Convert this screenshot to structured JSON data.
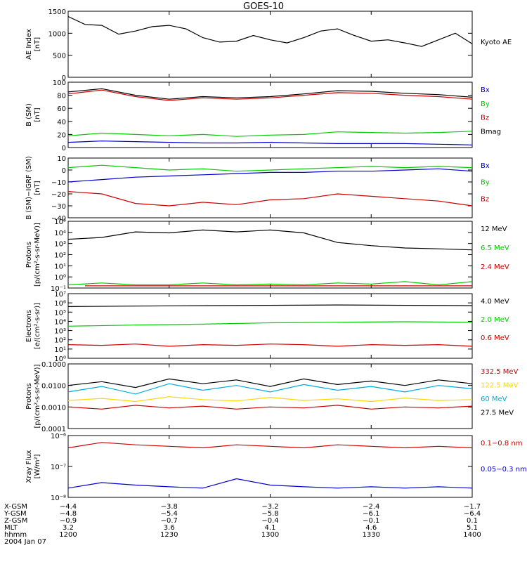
{
  "title": "GOES-10",
  "chart_data": [
    {
      "type": "line",
      "panel": "ae-index",
      "ylabel": [
        "AE Index",
        "[nT]"
      ],
      "ylim": [
        0,
        1500
      ],
      "y_ticks": [
        "0",
        "500",
        "1000",
        "1500"
      ],
      "series": [
        {
          "name": "Kyoto AE",
          "color": "#000000",
          "x": [
            0,
            5,
            10,
            15,
            20,
            25,
            30,
            35,
            40,
            45,
            50,
            55,
            60,
            65,
            70,
            75,
            80,
            85,
            90,
            95,
            100,
            105,
            110,
            115,
            120
          ],
          "y": [
            1380,
            1200,
            1180,
            980,
            1050,
            1150,
            1180,
            1100,
            900,
            800,
            820,
            950,
            850,
            780,
            900,
            1050,
            1100,
            950,
            820,
            850,
            780,
            700,
            850,
            1000,
            760
          ]
        }
      ]
    },
    {
      "type": "line",
      "panel": "b-field-sm",
      "ylabel": [
        "B (SM)",
        "[nT]"
      ],
      "ylim": [
        0,
        100
      ],
      "y_ticks": [
        "0",
        "20",
        "40",
        "60",
        "80",
        "100"
      ],
      "series": [
        {
          "name": "Bx",
          "color": "#0000cc",
          "x": [
            0,
            10,
            20,
            30,
            40,
            50,
            60,
            70,
            80,
            90,
            100,
            110,
            120
          ],
          "y": [
            8,
            10,
            9,
            8,
            7,
            7,
            8,
            7,
            6,
            6,
            6,
            5,
            4
          ]
        },
        {
          "name": "By",
          "color": "#00cc00",
          "x": [
            0,
            10,
            20,
            30,
            40,
            50,
            60,
            70,
            80,
            90,
            100,
            110,
            120
          ],
          "y": [
            18,
            22,
            20,
            18,
            20,
            17,
            19,
            20,
            24,
            23,
            22,
            23,
            25
          ]
        },
        {
          "name": "Bz",
          "color": "#cc0000",
          "x": [
            0,
            10,
            20,
            30,
            40,
            50,
            60,
            70,
            80,
            90,
            100,
            110,
            120
          ],
          "y": [
            82,
            88,
            78,
            72,
            76,
            74,
            76,
            80,
            84,
            83,
            80,
            78,
            74
          ]
        },
        {
          "name": "Bmag",
          "color": "#000000",
          "x": [
            0,
            10,
            20,
            30,
            40,
            50,
            60,
            70,
            80,
            90,
            100,
            110,
            120
          ],
          "y": [
            85,
            90,
            80,
            74,
            78,
            76,
            78,
            82,
            87,
            86,
            83,
            81,
            77
          ]
        }
      ]
    },
    {
      "type": "line",
      "panel": "b-minus-igrf",
      "ylabel": [
        "B (SM)−IGRF (SM)",
        "[nT]"
      ],
      "ylim": [
        -40,
        10
      ],
      "y_ticks": [
        "−40",
        "−30",
        "−20",
        "−10",
        "0",
        "10"
      ],
      "series": [
        {
          "name": "Bx",
          "color": "#0000cc",
          "x": [
            0,
            10,
            20,
            30,
            40,
            50,
            60,
            70,
            80,
            90,
            100,
            110,
            120
          ],
          "y": [
            -10,
            -8,
            -6,
            -5,
            -4,
            -3,
            -2,
            -2,
            -1,
            -1,
            0,
            1,
            -1
          ]
        },
        {
          "name": "By",
          "color": "#00cc00",
          "x": [
            0,
            10,
            20,
            30,
            40,
            50,
            60,
            70,
            80,
            90,
            100,
            110,
            120
          ],
          "y": [
            2,
            4,
            2,
            0,
            1,
            -1,
            0,
            1,
            2,
            3,
            2,
            3,
            2
          ]
        },
        {
          "name": "Bz",
          "color": "#cc0000",
          "x": [
            0,
            10,
            20,
            30,
            40,
            50,
            60,
            70,
            80,
            90,
            100,
            110,
            120
          ],
          "y": [
            -18,
            -20,
            -28,
            -30,
            -27,
            -29,
            -25,
            -24,
            -20,
            -22,
            -24,
            -26,
            -30
          ]
        }
      ]
    },
    {
      "type": "line",
      "panel": "protons-low",
      "ylabel": [
        "Protons",
        "[p/(cm²-s-sr-MeV)]"
      ],
      "y_scale": "log",
      "ylim": [
        0.05,
        100000
      ],
      "y_ticks": [
        "10⁻¹",
        "10⁰",
        "10¹",
        "10²",
        "10³",
        "10⁴",
        "10⁵"
      ],
      "series": [
        {
          "name": "12 MeV",
          "color": "#000000",
          "x": [
            0,
            10,
            20,
            30,
            40,
            50,
            60,
            70,
            80,
            90,
            100,
            110,
            120
          ],
          "y": [
            2000,
            3000,
            10000,
            8000,
            15000,
            10000,
            15000,
            8000,
            1000,
            500,
            300,
            250,
            200
          ]
        },
        {
          "name": "6.5 MeV",
          "color": "#00cc00",
          "x": [
            0,
            10,
            20,
            30,
            40,
            50,
            60,
            70,
            80,
            90,
            100,
            110,
            120
          ],
          "y": [
            0.1,
            0.15,
            0.1,
            0.1,
            0.15,
            0.1,
            0.12,
            0.1,
            0.15,
            0.12,
            0.2,
            0.1,
            0.2
          ]
        },
        {
          "name": "2.4 MeV",
          "color": "#cc0000",
          "x": [
            5,
            40,
            80,
            120
          ],
          "y": [
            0.08,
            0.08,
            0.08,
            0.08
          ]
        }
      ]
    },
    {
      "type": "line",
      "panel": "electrons",
      "ylabel": [
        "Electrons",
        "[e/(cm²-s-sr)]"
      ],
      "y_scale": "log",
      "ylim": [
        1,
        10000000
      ],
      "y_ticks": [
        "10⁰",
        "10¹",
        "10²",
        "10³",
        "10⁴",
        "10⁵",
        "10⁶",
        "10⁷"
      ],
      "series": [
        {
          "name": "4.0 MeV",
          "color": "#000000",
          "x": [
            0,
            20,
            40,
            60,
            80,
            100,
            120
          ],
          "y": [
            400000,
            450000,
            500000,
            550000,
            600000,
            550000,
            500000
          ]
        },
        {
          "name": "2.0 MeV",
          "color": "#00cc00",
          "x": [
            0,
            20,
            40,
            60,
            80,
            100,
            120
          ],
          "y": [
            3000,
            4000,
            5000,
            7000,
            8000,
            9000,
            8000
          ]
        },
        {
          "name": "0.6 MeV",
          "color": "#cc0000",
          "x": [
            0,
            10,
            20,
            30,
            40,
            50,
            60,
            70,
            80,
            90,
            100,
            110,
            120
          ],
          "y": [
            30,
            25,
            35,
            20,
            30,
            25,
            35,
            30,
            20,
            30,
            25,
            30,
            20
          ]
        }
      ]
    },
    {
      "type": "line",
      "panel": "protons-high",
      "ylabel": [
        "Protons",
        "[p/(cm²-s-sr-MeV)]"
      ],
      "y_scale": "log",
      "ylim": [
        0.0001,
        0.1
      ],
      "y_ticks": [
        "0.0001",
        "0.0010",
        "0.0100",
        "0.1000"
      ],
      "series": [
        {
          "name": "332.5 MeV",
          "color": "#cc0000",
          "x": [
            0,
            10,
            20,
            30,
            40,
            50,
            60,
            70,
            80,
            90,
            100,
            110,
            120
          ],
          "y": [
            0.001,
            0.0008,
            0.0012,
            0.0009,
            0.0011,
            0.0008,
            0.001,
            0.0009,
            0.0012,
            0.0008,
            0.001,
            0.0009,
            0.0011
          ]
        },
        {
          "name": "122.5 MeV",
          "color": "#ffd700",
          "x": [
            0,
            10,
            20,
            30,
            40,
            50,
            60,
            70,
            80,
            90,
            100,
            110,
            120
          ],
          "y": [
            0.002,
            0.0025,
            0.0018,
            0.003,
            0.0022,
            0.0019,
            0.0028,
            0.002,
            0.0024,
            0.0018,
            0.0026,
            0.002,
            0.0022
          ]
        },
        {
          "name": "60 MeV",
          "color": "#00aadd",
          "x": [
            0,
            10,
            20,
            30,
            40,
            50,
            60,
            70,
            80,
            90,
            100,
            110,
            120
          ],
          "y": [
            0.005,
            0.009,
            0.004,
            0.012,
            0.006,
            0.01,
            0.005,
            0.011,
            0.006,
            0.009,
            0.005,
            0.01,
            0.007
          ]
        },
        {
          "name": "27.5 MeV",
          "color": "#000000",
          "x": [
            0,
            10,
            20,
            30,
            40,
            50,
            60,
            70,
            80,
            90,
            100,
            110,
            120
          ],
          "y": [
            0.01,
            0.015,
            0.008,
            0.02,
            0.012,
            0.018,
            0.009,
            0.02,
            0.011,
            0.016,
            0.01,
            0.018,
            0.012
          ]
        }
      ]
    },
    {
      "type": "line",
      "panel": "xray-flux",
      "ylabel": [
        "Xray Flux",
        "[W/m²]"
      ],
      "y_scale": "log",
      "ylim": [
        1e-08,
        1e-06
      ],
      "y_ticks": [
        "10⁻⁸",
        "10⁻⁷",
        "10⁻⁶"
      ],
      "series": [
        {
          "name": "0.1−0.8 nm",
          "color": "#cc0000",
          "x": [
            0,
            10,
            20,
            30,
            40,
            50,
            60,
            70,
            80,
            90,
            100,
            110,
            120
          ],
          "y": [
            4e-07,
            6e-07,
            5e-07,
            4.5e-07,
            4e-07,
            5e-07,
            4.5e-07,
            4e-07,
            5e-07,
            4.5e-07,
            4e-07,
            4.5e-07,
            4e-07
          ]
        },
        {
          "name": "0.05−0.3 nm",
          "color": "#0000cc",
          "x": [
            0,
            10,
            20,
            30,
            40,
            50,
            60,
            70,
            80,
            90,
            100,
            110,
            120
          ],
          "y": [
            2e-08,
            3e-08,
            2.5e-08,
            2.2e-08,
            2e-08,
            4e-08,
            2.5e-08,
            2.2e-08,
            2e-08,
            2.2e-08,
            2e-08,
            2.2e-08,
            2e-08
          ]
        }
      ]
    }
  ],
  "footer": {
    "rows": [
      {
        "label": "X-GSM",
        "values": [
          "−4.4",
          "−3.8",
          "−3.2",
          "−2.4",
          "−1.7"
        ]
      },
      {
        "label": "Y-GSM",
        "values": [
          "−4.8",
          "−5.4",
          "−5.8",
          "−6.1",
          "−6.4"
        ]
      },
      {
        "label": "Z-GSM",
        "values": [
          "−0.9",
          "−0.7",
          "−0.4",
          "−0.1",
          "0.1"
        ]
      },
      {
        "label": "MLT",
        "values": [
          "3.2",
          "3.6",
          "4.1",
          "4.6",
          "5.1"
        ]
      },
      {
        "label": "hhmm",
        "values": [
          "1200",
          "1230",
          "1300",
          "1330",
          "1400"
        ]
      }
    ],
    "date": "2004 Jan 07"
  }
}
